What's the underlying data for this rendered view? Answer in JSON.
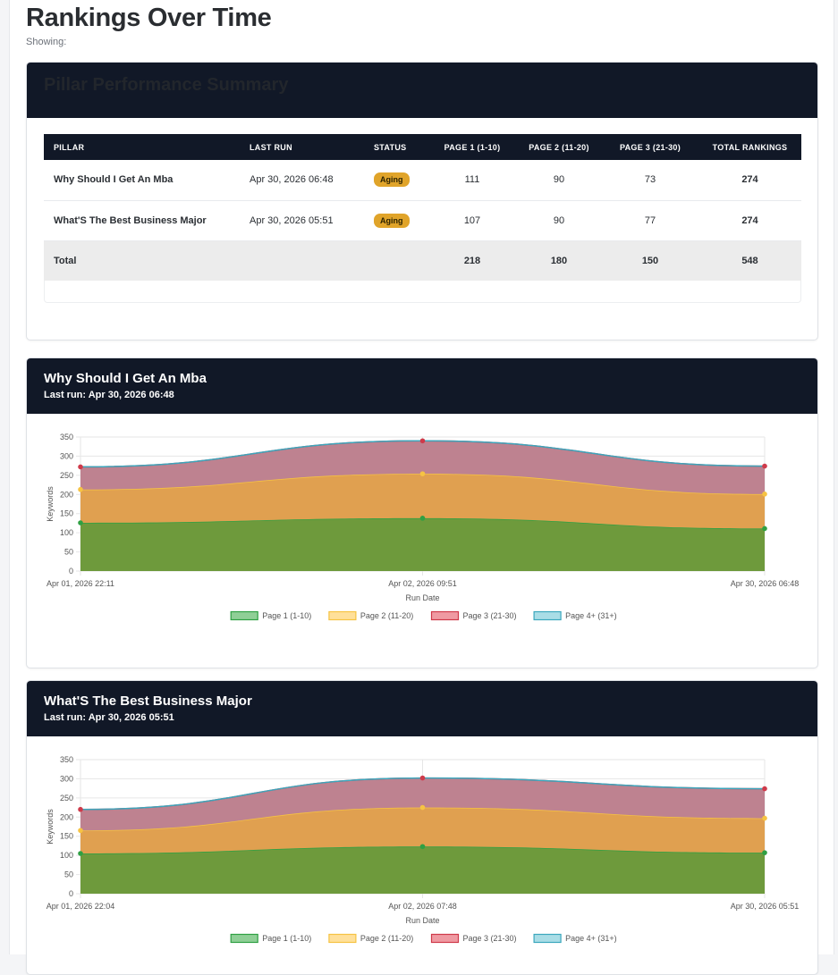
{
  "page": {
    "title": "Rankings Over Time",
    "showing": "Showing:"
  },
  "summary": {
    "title": "Pillar Performance Summary",
    "headers": [
      "PILLAR",
      "LAST RUN",
      "STATUS",
      "PAGE 1 (1-10)",
      "PAGE 2 (11-20)",
      "PAGE 3 (21-30)",
      "TOTAL RANKINGS"
    ],
    "rows": [
      {
        "pillar": "Why Should I Get An Mba",
        "last_run": "Apr 30, 2026 06:48",
        "status": "Aging",
        "p1": "111",
        "p2": "90",
        "p3": "73",
        "total": "274"
      },
      {
        "pillar": "What'S The Best Business Major",
        "last_run": "Apr 30, 2026 05:51",
        "status": "Aging",
        "p1": "107",
        "p2": "90",
        "p3": "77",
        "total": "274"
      }
    ],
    "total": {
      "label": "Total",
      "p1": "218",
      "p2": "180",
      "p3": "150",
      "total": "548"
    },
    "status_color": "#e0a42a"
  },
  "charts": [
    {
      "title": "Why Should I Get An Mba",
      "last_run": "Last run: Apr 30, 2026 06:48",
      "ylabel": "Keywords",
      "xlabel": "Run Date",
      "yticks": [
        "350",
        "300",
        "250",
        "200",
        "150",
        "100",
        "50",
        "0"
      ],
      "legend": [
        "Page 1 (1-10)",
        "Page 2 (11-20)",
        "Page 3 (21-30)",
        "Page 4+ (31+)"
      ]
    },
    {
      "title": "What'S The Best Business Major",
      "last_run": "Last run: Apr 30, 2026 05:51",
      "ylabel": "Keywords",
      "xlabel": "Run Date",
      "yticks": [
        "350",
        "300",
        "250",
        "200",
        "150",
        "100",
        "50",
        "0"
      ],
      "legend": [
        "Page 1 (1-10)",
        "Page 2 (11-20)",
        "Page 3 (21-30)",
        "Page 4+ (31+)"
      ]
    }
  ],
  "chart_data": [
    {
      "type": "area",
      "stacked": true,
      "x": [
        "Apr 01, 2026 22:11",
        "Apr 02, 2026 09:51",
        "Apr 30, 2026 06:48"
      ],
      "xlabel": "Run Date",
      "ylabel": "Keywords",
      "ylim": [
        0,
        350
      ],
      "grid": true,
      "legend_position": "bottom",
      "series": [
        {
          "name": "Page 1 (1-10)",
          "values": [
            126,
            138,
            111
          ],
          "fill": "#6e9a3c",
          "line": "#2fa043"
        },
        {
          "name": "Page 2 (11-20)",
          "values": [
            87,
            116,
            90
          ],
          "fill": "#e0a050",
          "line": "#f6c343"
        },
        {
          "name": "Page 3 (21-30)",
          "values": [
            59,
            86,
            73
          ],
          "fill": "#be8290",
          "line": "#cf3a4a"
        },
        {
          "name": "Page 4+ (31+)",
          "values": [
            0,
            0,
            0
          ],
          "fill": "#a9dde6",
          "line": "#3ba7bd"
        }
      ]
    },
    {
      "type": "area",
      "stacked": true,
      "x": [
        "Apr 01, 2026 22:04",
        "Apr 02, 2026 07:48",
        "Apr 30, 2026 05:51"
      ],
      "xlabel": "Run Date",
      "ylabel": "Keywords",
      "ylim": [
        0,
        350
      ],
      "grid": true,
      "legend_position": "bottom",
      "series": [
        {
          "name": "Page 1 (1-10)",
          "values": [
            105,
            123,
            107
          ],
          "fill": "#6e9a3c",
          "line": "#2fa043"
        },
        {
          "name": "Page 2 (11-20)",
          "values": [
            60,
            102,
            90
          ],
          "fill": "#e0a050",
          "line": "#f6c343"
        },
        {
          "name": "Page 3 (21-30)",
          "values": [
            55,
            77,
            77
          ],
          "fill": "#be8290",
          "line": "#cf3a4a"
        },
        {
          "name": "Page 4+ (31+)",
          "values": [
            0,
            0,
            0
          ],
          "fill": "#a9dde6",
          "line": "#3ba7bd"
        }
      ]
    }
  ]
}
